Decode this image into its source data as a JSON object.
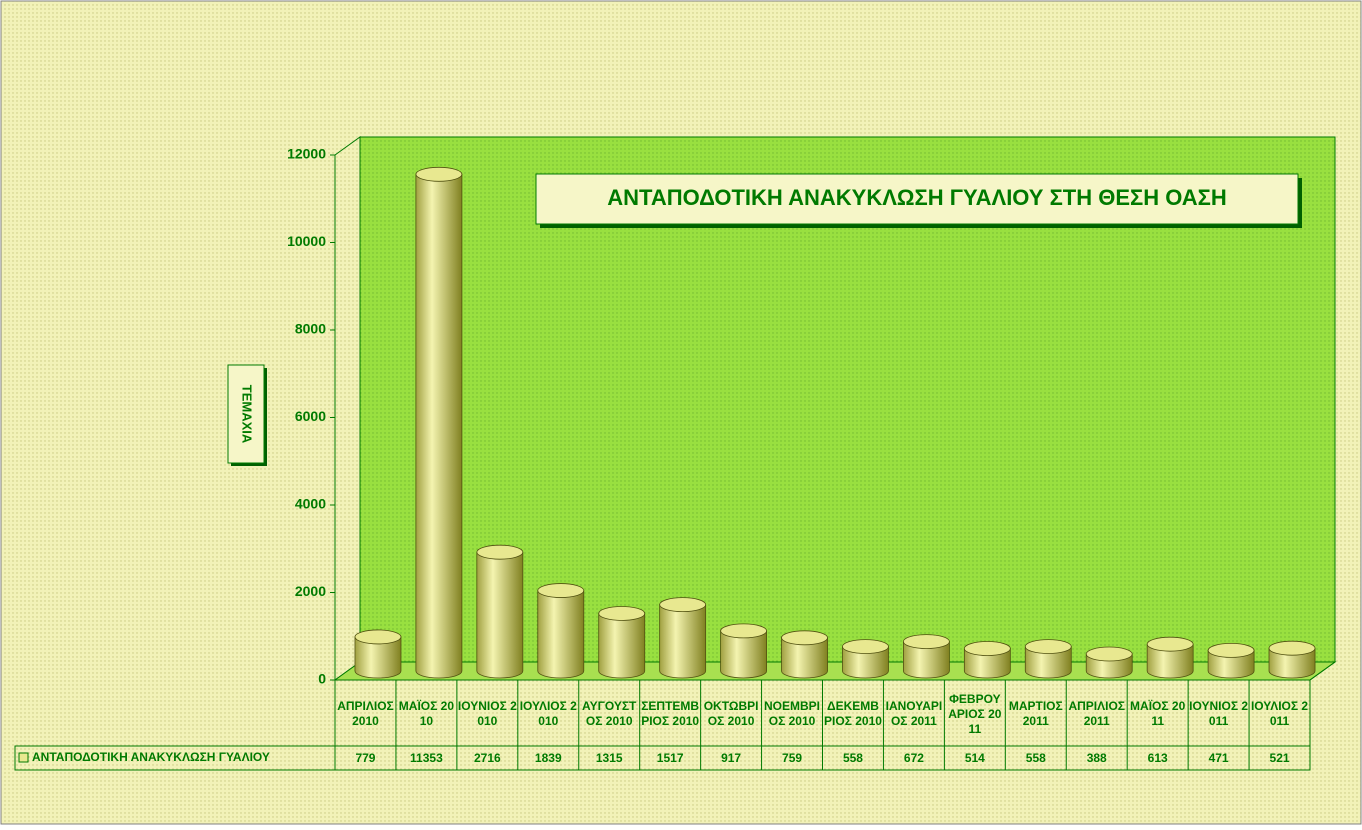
{
  "chart_data": {
    "type": "bar",
    "title": "ΑΝΤΑΠΟΔΟΤΙΚΗ ΑΝΑΚΥΚΛΩΣΗ ΓΥΑΛΙΟΥ ΣΤΗ ΘΕΣΗ ΟΑΣΗ",
    "y_label": "ΤΕΜΑΧΙΑ",
    "categories": [
      "ΑΠΡΙΛΙΟΣ 2010",
      "ΜΑΪΟΣ 2010",
      "ΙΟΥΝΙΟΣ 2010",
      "ΙΟΥΛΙΟΣ 2010",
      "ΑΥΓΟΥΣΤΟΣ 2010",
      "ΣΕΠΤΕΜΒΡΙΟΣ 2010",
      "ΟΚΤΩΒΡΙΟΣ 2010",
      "ΝΟΕΜΒΡΙΟΣ 2010",
      "ΔΕΚΕΜΒΡΙΟΣ 2010",
      "ΙΑΝΟΥΑΡΙΟΣ 2011",
      "ΦΕΒΡΟΥΑΡΙΟΣ 2011",
      "ΜΑΡΤΙΟΣ 2011",
      "ΑΠΡΙΛΙΟΣ 2011",
      "ΜΑΪΟΣ 2011",
      "ΙΟΥΝΙΟΣ 2011",
      "ΙΟΥΛΙΟΣ 2011"
    ],
    "series": [
      {
        "name": "ΑΝΤΑΠΟΔΟΤΙΚΗ ΑΝΑΚΥΚΛΩΣΗ ΓΥΑΛΙΟΥ",
        "color": "#e8e890",
        "values": [
          779,
          11353,
          2716,
          1839,
          1315,
          1517,
          917,
          759,
          558,
          672,
          514,
          558,
          388,
          613,
          471,
          521
        ]
      }
    ],
    "ylim": [
      0,
      12000
    ],
    "yticks": [
      0,
      2000,
      4000,
      6000,
      8000,
      10000,
      12000
    ],
    "grid": false
  }
}
